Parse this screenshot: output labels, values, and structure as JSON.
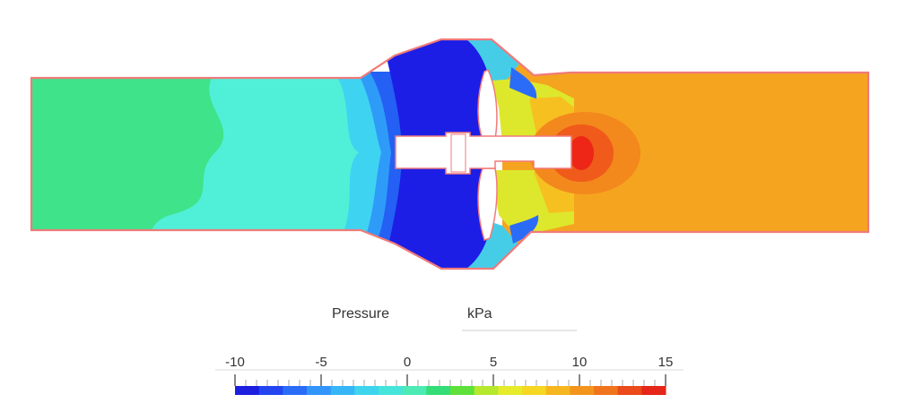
{
  "legend": {
    "quantity": "Pressure",
    "unit": "kPa",
    "min": -10,
    "max": 15,
    "tick_labels": [
      "-10",
      "-5",
      "0",
      "5",
      "10",
      "15"
    ],
    "tick_values": [
      -10,
      -5,
      0,
      5,
      10,
      15
    ],
    "color_bands": [
      "#1c1ee0",
      "#2245f0",
      "#2a6cf8",
      "#3295fa",
      "#36b6f6",
      "#3fd4ee",
      "#46e5dc",
      "#4deab4",
      "#33dd77",
      "#5de03a",
      "#b6e82e",
      "#e6ec2a",
      "#f6d722",
      "#f6b61f",
      "#f3951d",
      "#f0741c",
      "#eb4a1a",
      "#e52618"
    ]
  },
  "field_colors": {
    "inlet_green": "#3fe38a",
    "inlet_cyan": "#50f0d8",
    "low_pressure_blue": "#1c1ee6",
    "outlet_orange": "#f5a41f",
    "stagnation_red": "#ee2617",
    "wall_outline": "#f07a7a"
  }
}
